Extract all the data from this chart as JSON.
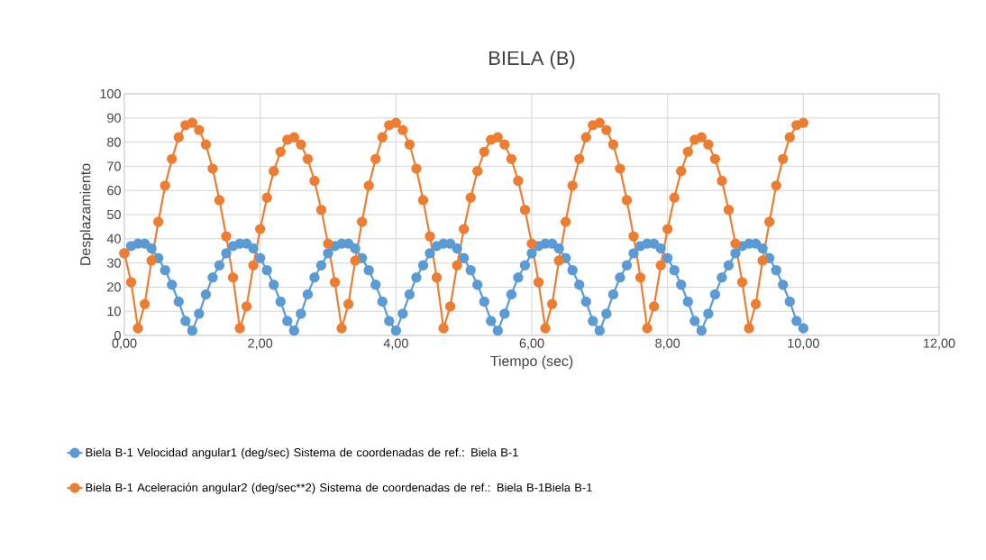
{
  "chart_data": {
    "type": "line",
    "title": "BIELA (B)",
    "xlabel": "Tiempo (sec)",
    "ylabel": "Desplazamiento",
    "x": [
      0,
      0.1,
      0.2,
      0.3,
      0.4,
      0.5,
      0.6,
      0.7,
      0.8,
      0.9,
      1,
      1.1,
      1.2,
      1.3,
      1.4,
      1.5,
      1.6,
      1.7,
      1.8,
      1.9,
      2,
      2.1,
      2.2,
      2.3,
      2.4,
      2.5,
      2.6,
      2.7,
      2.8,
      2.9,
      3,
      3.1,
      3.2,
      3.3,
      3.4,
      3.5,
      3.6,
      3.7,
      3.8,
      3.9,
      4,
      4.1,
      4.2,
      4.3,
      4.4,
      4.5,
      4.6,
      4.7,
      4.8,
      4.9,
      5,
      5.1,
      5.2,
      5.3,
      5.4,
      5.5,
      5.6,
      5.7,
      5.8,
      5.9,
      6,
      6.1,
      6.2,
      6.3,
      6.4,
      6.5,
      6.6,
      6.7,
      6.8,
      6.9,
      7,
      7.1,
      7.2,
      7.3,
      7.4,
      7.5,
      7.6,
      7.7,
      7.8,
      7.9,
      8,
      8.1,
      8.2,
      8.3,
      8.4,
      8.5,
      8.6,
      8.7,
      8.8,
      8.9,
      9,
      9.1,
      9.2,
      9.3,
      9.4,
      9.5,
      9.6,
      9.7,
      9.8,
      9.9,
      10
    ],
    "series": [
      {
        "name": "Biela B-1 Velocidad angular1 (deg/sec) Sistema de coordenadas de ref.: Biela B-1",
        "color": "#5b9bd5",
        "values": [
          34,
          37,
          38,
          38,
          36,
          32,
          27,
          21,
          14,
          6,
          2,
          9,
          17,
          24,
          29,
          34,
          37,
          38,
          38,
          36,
          32,
          27,
          21,
          14,
          6,
          2,
          9,
          17,
          24,
          29,
          34,
          37,
          38,
          38,
          36,
          32,
          27,
          21,
          14,
          6,
          2,
          9,
          17,
          24,
          29,
          34,
          37,
          38,
          38,
          36,
          32,
          27,
          21,
          14,
          6,
          2,
          9,
          17,
          24,
          29,
          34,
          37,
          38,
          38,
          36,
          32,
          27,
          21,
          14,
          6,
          2,
          9,
          17,
          24,
          29,
          34,
          37,
          38,
          38,
          36,
          32,
          27,
          21,
          14,
          6,
          2,
          9,
          17,
          24,
          29,
          34,
          37,
          38,
          38,
          36,
          32,
          27,
          21,
          14,
          6,
          3
        ]
      },
      {
        "name": "Biela B-1 Aceleración angular2 (deg/sec**2) Sistema de coordenadas de ref.: Biela B-1Biela B-1",
        "color": "#ed7d31",
        "values": [
          34,
          22,
          3,
          13,
          31,
          47,
          62,
          73,
          82,
          87,
          88,
          85,
          79,
          69,
          56,
          41,
          24,
          3,
          12,
          29,
          44,
          57,
          68,
          76,
          81,
          82,
          79,
          73,
          64,
          52,
          38,
          22,
          3,
          13,
          31,
          47,
          62,
          73,
          82,
          87,
          88,
          85,
          79,
          69,
          56,
          41,
          24,
          3,
          12,
          29,
          44,
          57,
          68,
          76,
          81,
          82,
          79,
          73,
          64,
          52,
          38,
          22,
          3,
          13,
          31,
          47,
          62,
          73,
          82,
          87,
          88,
          85,
          79,
          69,
          56,
          41,
          24,
          3,
          12,
          29,
          44,
          57,
          68,
          76,
          81,
          82,
          79,
          73,
          64,
          52,
          38,
          22,
          3,
          13,
          31,
          47,
          62,
          73,
          82,
          87,
          88
        ]
      }
    ],
    "xlim": [
      0,
      12
    ],
    "xticks": [
      {
        "value": 0,
        "label": "0,00"
      },
      {
        "value": 2,
        "label": "2,00"
      },
      {
        "value": 4,
        "label": "4,00"
      },
      {
        "value": 6,
        "label": "6,00"
      },
      {
        "value": 8,
        "label": "8,00"
      },
      {
        "value": 10,
        "label": "10,00"
      },
      {
        "value": 12,
        "label": "12,00"
      }
    ],
    "ylim": [
      0,
      100
    ],
    "yticks": [
      0,
      10,
      20,
      30,
      40,
      50,
      60,
      70,
      80,
      90,
      100
    ],
    "grid": true,
    "legend": "bottom",
    "marker": "circle",
    "line_style": "solid"
  }
}
